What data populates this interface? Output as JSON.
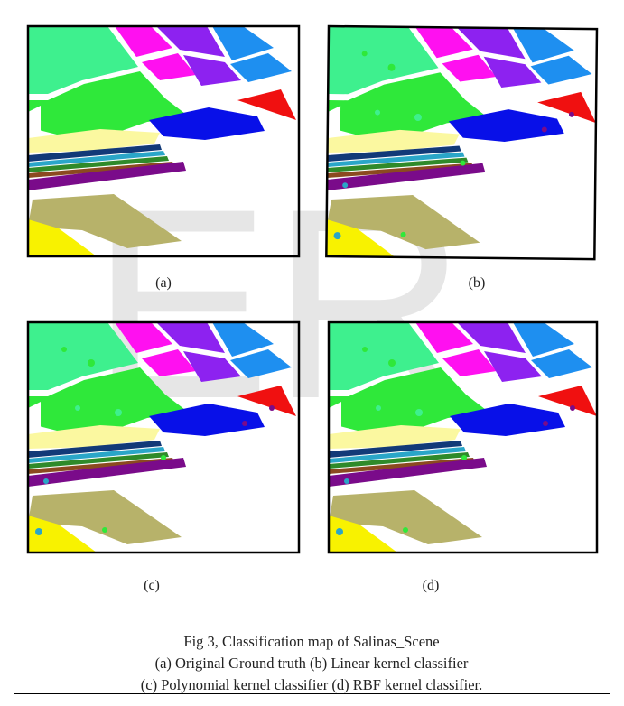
{
  "figure": {
    "watermark": "ER",
    "panels": [
      {
        "label": "(a)"
      },
      {
        "label": "(b)"
      },
      {
        "label": "(c)"
      },
      {
        "label": "(d)"
      }
    ],
    "caption": [
      "Fig 3, Classification map of Salinas_Scene",
      "(a) Original Ground truth (b) Linear kernel classifier",
      "(c) Polynomial kernel classifier (d) RBF kernel classifier."
    ]
  }
}
